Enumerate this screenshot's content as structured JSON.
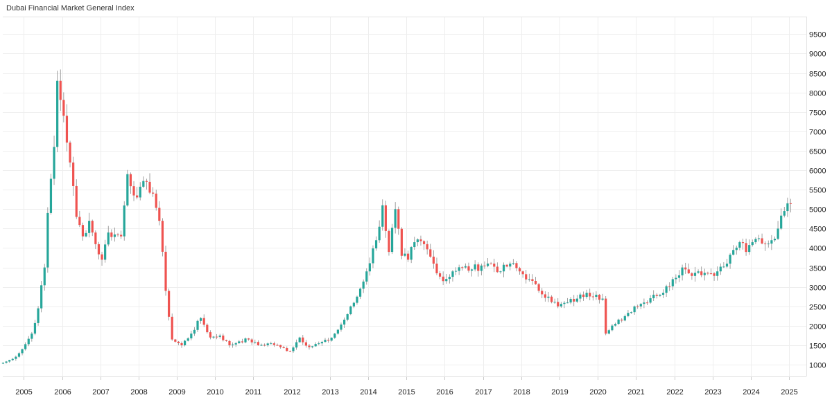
{
  "chart_data": {
    "type": "candlestick",
    "title": "Dubai Financial Market General Index",
    "frequency": "monthly",
    "xlabel": "",
    "ylabel": "",
    "ylim": [
      700,
      9950
    ],
    "xlim": [
      2004.45,
      2025.45
    ],
    "grid": true,
    "legend": "none",
    "up_color": "#26a69a",
    "down_color": "#ef5350",
    "wick_color": "#888888",
    "y_ticks": [
      1000,
      1500,
      2000,
      2500,
      3000,
      3500,
      4000,
      4500,
      5000,
      5500,
      6000,
      6500,
      7000,
      7500,
      8000,
      8500,
      9000,
      9500
    ],
    "x_ticks": [
      2005,
      2006,
      2007,
      2008,
      2009,
      2010,
      2011,
      2012,
      2013,
      2014,
      2015,
      2016,
      2017,
      2018,
      2019,
      2020,
      2021,
      2022,
      2023,
      2024,
      2025
    ],
    "anchor_closes": [
      [
        "2004-06",
        1050
      ],
      [
        "2004-09",
        1150
      ],
      [
        "2004-12",
        1400
      ],
      [
        "2005-03",
        1800
      ],
      [
        "2005-05",
        2450
      ],
      [
        "2005-07",
        3500
      ],
      [
        "2005-08",
        4900
      ],
      [
        "2005-10",
        6600
      ],
      [
        "2005-11",
        8300
      ],
      [
        "2006-01",
        7400
      ],
      [
        "2006-03",
        6200
      ],
      [
        "2006-05",
        4800
      ],
      [
        "2006-07",
        4300
      ],
      [
        "2006-09",
        4700
      ],
      [
        "2006-11",
        4100
      ],
      [
        "2007-01",
        3700
      ],
      [
        "2007-03",
        4400
      ],
      [
        "2007-05",
        4350
      ],
      [
        "2007-07",
        4300
      ],
      [
        "2007-09",
        5900
      ],
      [
        "2007-12",
        5300
      ],
      [
        "2008-03",
        5700
      ],
      [
        "2008-05",
        5400
      ],
      [
        "2008-07",
        4700
      ],
      [
        "2008-09",
        2900
      ],
      [
        "2008-11",
        1650
      ],
      [
        "2009-02",
        1500
      ],
      [
        "2009-05",
        1800
      ],
      [
        "2009-08",
        2200
      ],
      [
        "2009-11",
        1700
      ],
      [
        "2010-02",
        1750
      ],
      [
        "2010-05",
        1500
      ],
      [
        "2010-08",
        1600
      ],
      [
        "2010-11",
        1650
      ],
      [
        "2011-02",
        1500
      ],
      [
        "2011-06",
        1550
      ],
      [
        "2011-09",
        1450
      ],
      [
        "2011-12",
        1350
      ],
      [
        "2012-03",
        1700
      ],
      [
        "2012-06",
        1450
      ],
      [
        "2012-09",
        1550
      ],
      [
        "2012-12",
        1620
      ],
      [
        "2013-03",
        1900
      ],
      [
        "2013-06",
        2300
      ],
      [
        "2013-09",
        2750
      ],
      [
        "2013-12",
        3400
      ],
      [
        "2014-03",
        4200
      ],
      [
        "2014-05",
        5100
      ],
      [
        "2014-07",
        3900
      ],
      [
        "2014-09",
        5000
      ],
      [
        "2014-11",
        3800
      ],
      [
        "2015-01",
        3700
      ],
      [
        "2015-03",
        4150
      ],
      [
        "2015-06",
        4100
      ],
      [
        "2015-09",
        3600
      ],
      [
        "2015-12",
        3150
      ],
      [
        "2016-03",
        3400
      ],
      [
        "2016-06",
        3500
      ],
      [
        "2016-09",
        3450
      ],
      [
        "2016-12",
        3550
      ],
      [
        "2017-03",
        3600
      ],
      [
        "2017-06",
        3400
      ],
      [
        "2017-09",
        3600
      ],
      [
        "2017-12",
        3400
      ],
      [
        "2018-03",
        3200
      ],
      [
        "2018-06",
        2900
      ],
      [
        "2018-09",
        2750
      ],
      [
        "2018-12",
        2500
      ],
      [
        "2019-03",
        2600
      ],
      [
        "2019-06",
        2700
      ],
      [
        "2019-09",
        2850
      ],
      [
        "2019-12",
        2800
      ],
      [
        "2020-02",
        2700
      ],
      [
        "2020-03",
        1800
      ],
      [
        "2020-06",
        2050
      ],
      [
        "2020-09",
        2250
      ],
      [
        "2020-12",
        2500
      ],
      [
        "2021-03",
        2600
      ],
      [
        "2021-06",
        2800
      ],
      [
        "2021-09",
        2850
      ],
      [
        "2021-12",
        3200
      ],
      [
        "2022-03",
        3500
      ],
      [
        "2022-05",
        3350
      ],
      [
        "2022-08",
        3400
      ],
      [
        "2022-11",
        3350
      ],
      [
        "2023-02",
        3400
      ],
      [
        "2023-05",
        3600
      ],
      [
        "2023-07",
        3950
      ],
      [
        "2023-09",
        4150
      ],
      [
        "2023-11",
        3900
      ],
      [
        "2024-01",
        4150
      ],
      [
        "2024-03",
        4250
      ],
      [
        "2024-05",
        4100
      ],
      [
        "2024-07",
        4200
      ],
      [
        "2024-09",
        4500
      ],
      [
        "2024-11",
        4950
      ],
      [
        "2024-12",
        5150
      ],
      [
        "2025-01",
        5130
      ]
    ]
  }
}
